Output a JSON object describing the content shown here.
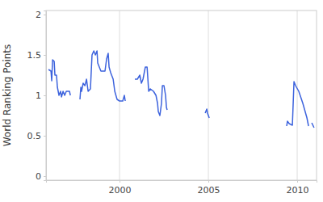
{
  "chart_data": {
    "type": "line",
    "y_label": "World Ranking Points",
    "x": [
      1996.0,
      1996.14,
      1996.18,
      1996.23,
      1996.32,
      1996.36,
      1996.45,
      1996.5,
      1996.59,
      1996.68,
      1996.73,
      1996.82,
      1996.91,
      1997.0,
      1997.18,
      1997.23,
      1997.5,
      1997.77,
      1997.82,
      1997.86,
      1997.95,
      1998.05,
      1998.14,
      1998.23,
      1998.36,
      1998.45,
      1998.55,
      1998.64,
      1998.73,
      1998.77,
      1998.86,
      1998.95,
      1999.18,
      1999.27,
      1999.36,
      1999.41,
      1999.5,
      1999.64,
      1999.73,
      1999.86,
      2000.0,
      2000.18,
      2000.27,
      2000.32,
      2000.6,
      2000.86,
      2001.0,
      2001.14,
      2001.23,
      2001.32,
      2001.45,
      2001.55,
      2001.64,
      2001.73,
      2001.91,
      2002.05,
      2002.14,
      2002.18,
      2002.27,
      2002.36,
      2002.41,
      2002.5,
      2002.59,
      2002.64,
      2002.68,
      2003.7,
      2004.82,
      2004.91,
      2004.95,
      2005.05,
      2007.2,
      2009.41,
      2009.45,
      2009.55,
      2009.73,
      2009.82,
      2009.91,
      2010.09,
      2010.32,
      2010.55,
      2010.64,
      2010.73,
      2010.82,
      2010.95
    ],
    "series": [
      {
        "name": "World Ranking Points",
        "color": "#3d63dd",
        "values": [
          1.32,
          1.3,
          1.18,
          1.44,
          1.42,
          1.25,
          1.25,
          1.1,
          1.0,
          1.05,
          0.98,
          1.05,
          1.0,
          1.05,
          1.05,
          1.0,
          null,
          0.95,
          1.1,
          1.05,
          1.15,
          1.12,
          1.2,
          1.05,
          1.08,
          1.5,
          1.55,
          1.5,
          1.55,
          1.4,
          1.35,
          1.3,
          1.3,
          1.45,
          1.52,
          1.35,
          1.28,
          1.2,
          1.05,
          0.95,
          0.93,
          0.93,
          1.0,
          0.93,
          null,
          1.2,
          1.2,
          1.25,
          1.15,
          1.2,
          1.35,
          1.35,
          1.05,
          1.08,
          1.05,
          1.0,
          0.9,
          0.8,
          0.75,
          0.9,
          1.12,
          1.12,
          1.0,
          0.85,
          0.82,
          null,
          0.78,
          0.83,
          0.78,
          0.72,
          null,
          0.62,
          0.68,
          0.65,
          0.63,
          1.17,
          1.12,
          1.05,
          0.9,
          0.72,
          0.62,
          null,
          0.66,
          0.6
        ]
      }
    ],
    "xlim": [
      1995.86,
      2011.09
    ],
    "xticks": [
      2000,
      2005,
      2010
    ],
    "ylim": [
      -0.05,
      2.05
    ],
    "yticks": [
      0,
      0.5,
      1,
      1.5,
      2
    ],
    "grid": true
  }
}
